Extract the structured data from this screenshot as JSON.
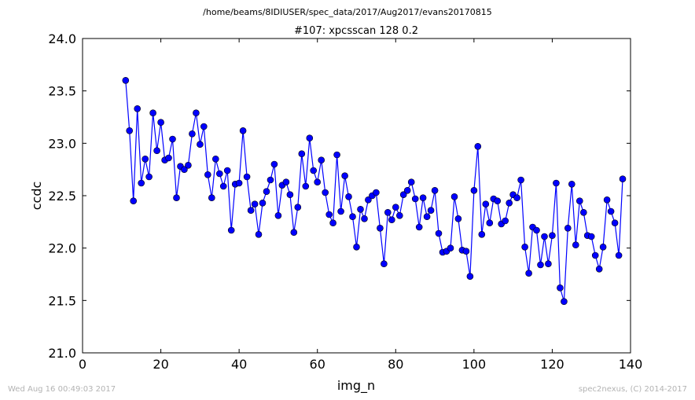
{
  "header": {
    "path": "/home/beams/8IDIUSER/spec_data/2017/Aug2017/evans20170815"
  },
  "footer": {
    "timestamp": "Wed Aug 16 00:49:03 2017",
    "credit": "spec2nexus, (C) 2014-2017"
  },
  "colors": {
    "series": "#0000ff",
    "text": "#000000",
    "footer": "#b3b3b3"
  },
  "chart_data": {
    "type": "line",
    "title": "#107: xpcsscan 128 0.2",
    "xlabel": "img_n",
    "ylabel": "ccdc",
    "xlim": [
      0,
      140
    ],
    "ylim": [
      21.0,
      24.0
    ],
    "xticks": [
      "0",
      "20",
      "40",
      "60",
      "80",
      "100",
      "120",
      "140"
    ],
    "yticks": [
      "21.0",
      "21.5",
      "22.0",
      "22.5",
      "23.0",
      "23.5",
      "24.0"
    ],
    "grid": false,
    "marker": "circle",
    "series": [
      {
        "x": [
          11,
          12,
          13,
          14,
          15,
          16,
          17,
          18,
          19,
          20,
          21,
          22,
          23,
          24,
          25,
          26,
          27,
          28,
          29,
          30,
          31,
          32,
          33,
          34,
          35,
          36,
          37,
          38,
          39,
          40,
          41,
          42,
          43,
          44,
          45,
          46,
          47,
          48,
          49,
          50,
          51,
          52,
          53,
          54,
          55,
          56,
          57,
          58,
          59,
          60,
          61,
          62,
          63,
          64,
          65,
          66,
          67,
          68,
          69,
          70,
          71,
          72,
          73,
          74,
          75,
          76,
          77,
          78,
          79,
          80,
          81,
          82,
          83,
          84,
          85,
          86,
          87,
          88,
          89,
          90,
          91,
          92,
          93,
          94,
          95,
          96,
          97,
          98,
          99,
          100,
          101,
          102,
          103,
          104,
          105,
          106,
          107,
          108,
          109,
          110,
          111,
          112,
          113,
          114,
          115,
          116,
          117,
          118,
          119,
          120,
          121,
          122,
          123,
          124,
          125,
          126,
          127,
          128,
          129,
          130,
          131,
          132,
          133,
          134,
          135,
          136,
          137,
          138
        ],
        "y": [
          23.6,
          23.12,
          22.45,
          23.33,
          22.62,
          22.85,
          22.68,
          23.29,
          22.93,
          23.2,
          22.84,
          22.86,
          23.04,
          22.48,
          22.78,
          22.75,
          22.79,
          23.09,
          23.29,
          22.99,
          23.16,
          22.7,
          22.48,
          22.85,
          22.71,
          22.59,
          22.74,
          22.17,
          22.61,
          22.62,
          23.12,
          22.68,
          22.36,
          22.42,
          22.13,
          22.43,
          22.54,
          22.65,
          22.8,
          22.31,
          22.6,
          22.63,
          22.51,
          22.15,
          22.39,
          22.9,
          22.59,
          23.05,
          22.74,
          22.63,
          22.84,
          22.53,
          22.32,
          22.24,
          22.89,
          22.35,
          22.69,
          22.49,
          22.3,
          22.01,
          22.37,
          22.28,
          22.46,
          22.5,
          22.53,
          22.19,
          21.85,
          22.34,
          22.27,
          22.39,
          22.31,
          22.51,
          22.55,
          22.63,
          22.47,
          22.2,
          22.48,
          22.3,
          22.36,
          22.55,
          22.14,
          21.96,
          21.97,
          22.0,
          22.49,
          22.28,
          21.98,
          21.97,
          21.73,
          22.55,
          22.97,
          22.13,
          22.42,
          22.24,
          22.47,
          22.45,
          22.23,
          22.26,
          22.43,
          22.51,
          22.48,
          22.65,
          22.01,
          21.76,
          22.2,
          22.17,
          21.84,
          22.11,
          21.85,
          22.12,
          22.62,
          21.62,
          21.49,
          22.19,
          22.61,
          22.03,
          22.45,
          22.34,
          22.12,
          22.11,
          21.93,
          21.8,
          22.01,
          22.46,
          22.35,
          22.24,
          21.93,
          22.66
        ]
      }
    ]
  }
}
